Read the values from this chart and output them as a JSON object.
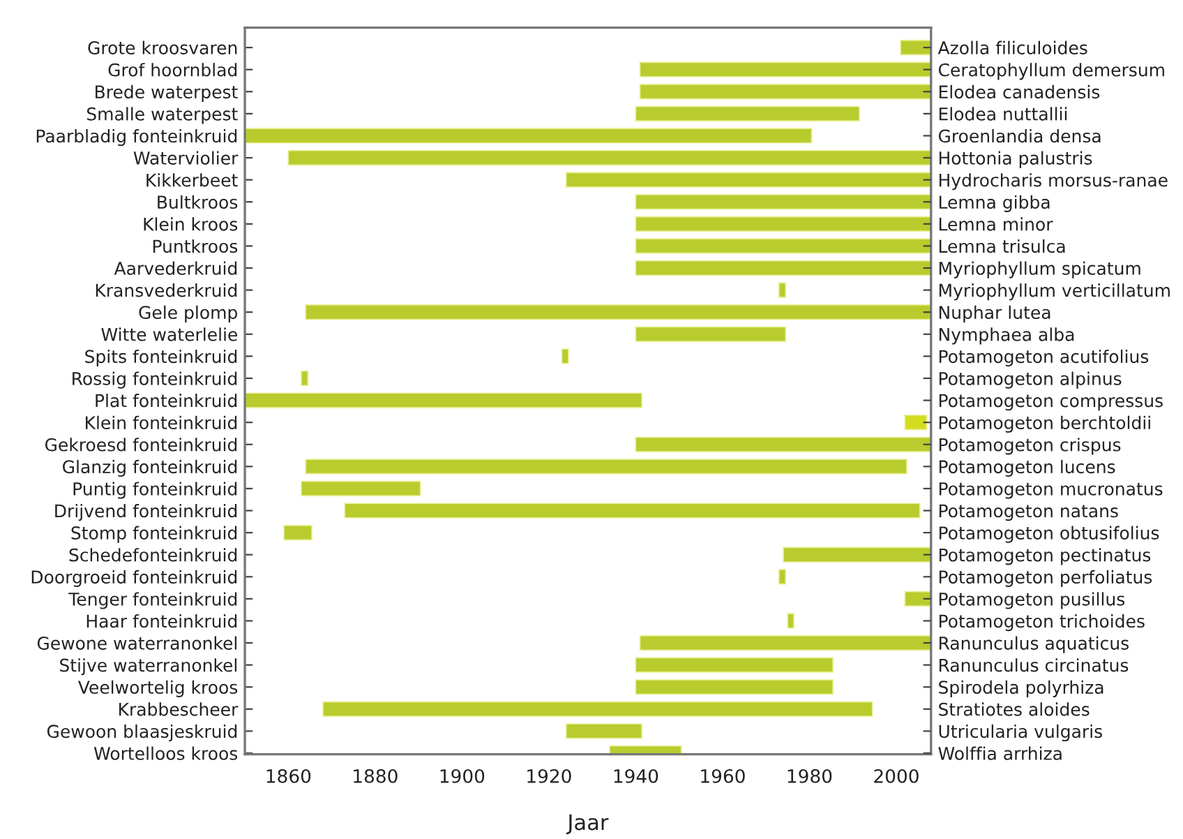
{
  "chart_data": {
    "type": "bar",
    "orientation": "horizontal",
    "xlabel": "Jaar",
    "categories": [
      "Grote kroosvaren",
      "Grof hoornblad",
      "Brede waterpest",
      "Smalle waterpest",
      "Paarbladig fonteinkruid",
      "Waterviolier",
      "Kikkerbeet",
      "Bultkroos",
      "Klein kroos",
      "Puntkroos",
      "Aarvederkruid",
      "Kransvederkruid",
      "Gele plomp",
      "Witte waterlelie",
      "Spits fonteinkruid",
      "Rossig fonteinkruid",
      "Plat fonteinkruid",
      "Klein fonteinkruid",
      "Gekroesd fonteinkruid",
      "Glanzig fonteinkruid",
      "Puntig fonteinkruid",
      "Drijvend fonteinkruid",
      "Stomp fonteinkruid",
      "Schedefonteinkruid",
      "Doorgroeid fonteinkruid",
      "Tenger fonteinkruid",
      "Haar fonteinkruid",
      "Gewone waterranonkel",
      "Stijve waterranonkel",
      "Veelwortelig kroos",
      "Krabbescheer",
      "Gewoon blaasjeskruid",
      "Wortelloos kroos"
    ],
    "y2_categories": [
      "Azolla filiculoides",
      "Ceratophyllum demersum",
      "Elodea canadensis",
      "Elodea nuttallii",
      "Groenlandia densa",
      "Hottonia palustris",
      "Hydrocharis morsus-ranae",
      "Lemna gibba",
      "Lemna minor",
      "Lemna trisulca",
      "Myriophyllum spicatum",
      "Myriophyllum verticillatum",
      "Nuphar lutea",
      "Nymphaea alba",
      "Potamogeton acutifolius",
      "Potamogeton alpinus",
      "Potamogeton compressus",
      "Potamogeton berchtoldii",
      "Potamogeton crispus",
      "Potamogeton lucens",
      "Potamogeton mucronatus",
      "Potamogeton natans",
      "Potamogeton obtusifolius",
      "Potamogeton pectinatus",
      "Potamogeton perfoliatus",
      "Potamogeton pusillus",
      "Potamogeton trichoides",
      "Ranunculus aquaticus",
      "Ranunculus circinatus",
      "Spirodela polyrhiza",
      "Stratiotes aloides",
      "Utricularia vulgaris",
      "Wolffia arrhiza"
    ],
    "base": [
      2001,
      1941,
      1941,
      1940,
      1850,
      1860,
      1924,
      1940,
      1940,
      1940,
      1940,
      1973,
      1864,
      1940,
      1923,
      1863,
      1850,
      2002,
      1940,
      1864,
      1863,
      1873,
      1859,
      1974,
      1973,
      2002,
      1975,
      1941,
      1940,
      1940,
      1868,
      1924,
      1934
    ],
    "values": [
      7,
      67,
      67,
      51.5,
      130.5,
      148,
      84,
      68,
      68,
      68,
      68,
      1.5,
      144,
      34.5,
      1.5,
      1.5,
      91.4,
      5,
      68,
      138.4,
      27.4,
      132.4,
      6.4,
      34,
      1.5,
      6,
      1.4,
      67,
      45.4,
      45.4,
      126.5,
      17.4,
      16.5
    ],
    "colors": [
      "#b8cc2e",
      "#b8cc2e",
      "#b8cc2e",
      "#b8cc2e",
      "#b8cc2e",
      "#b8cc2e",
      "#b8cc2e",
      "#b8cc2e",
      "#b8cc2e",
      "#b8cc2e",
      "#b8cc2e",
      "#b8cc2e",
      "#b8cc2e",
      "#b8cc2e",
      "#b8cc2e",
      "#b8cc2e",
      "#b8cc2e",
      "#d4dc20",
      "#b8cc2e",
      "#b8cc2e",
      "#b8cc2e",
      "#b8cc2e",
      "#b8cc2e",
      "#b8cc2e",
      "#b8cc2e",
      "#b8cc2e",
      "#b8cc2e",
      "#b8cc2e",
      "#b8cc2e",
      "#b8cc2e",
      "#b8cc2e",
      "#b8cc2e",
      "#b8cc2e"
    ],
    "xlim": [
      1850,
      2008
    ],
    "xticks": [
      1860,
      1880,
      1900,
      1920,
      1940,
      1960,
      1980,
      2000
    ],
    "grid": false,
    "legend": false
  }
}
